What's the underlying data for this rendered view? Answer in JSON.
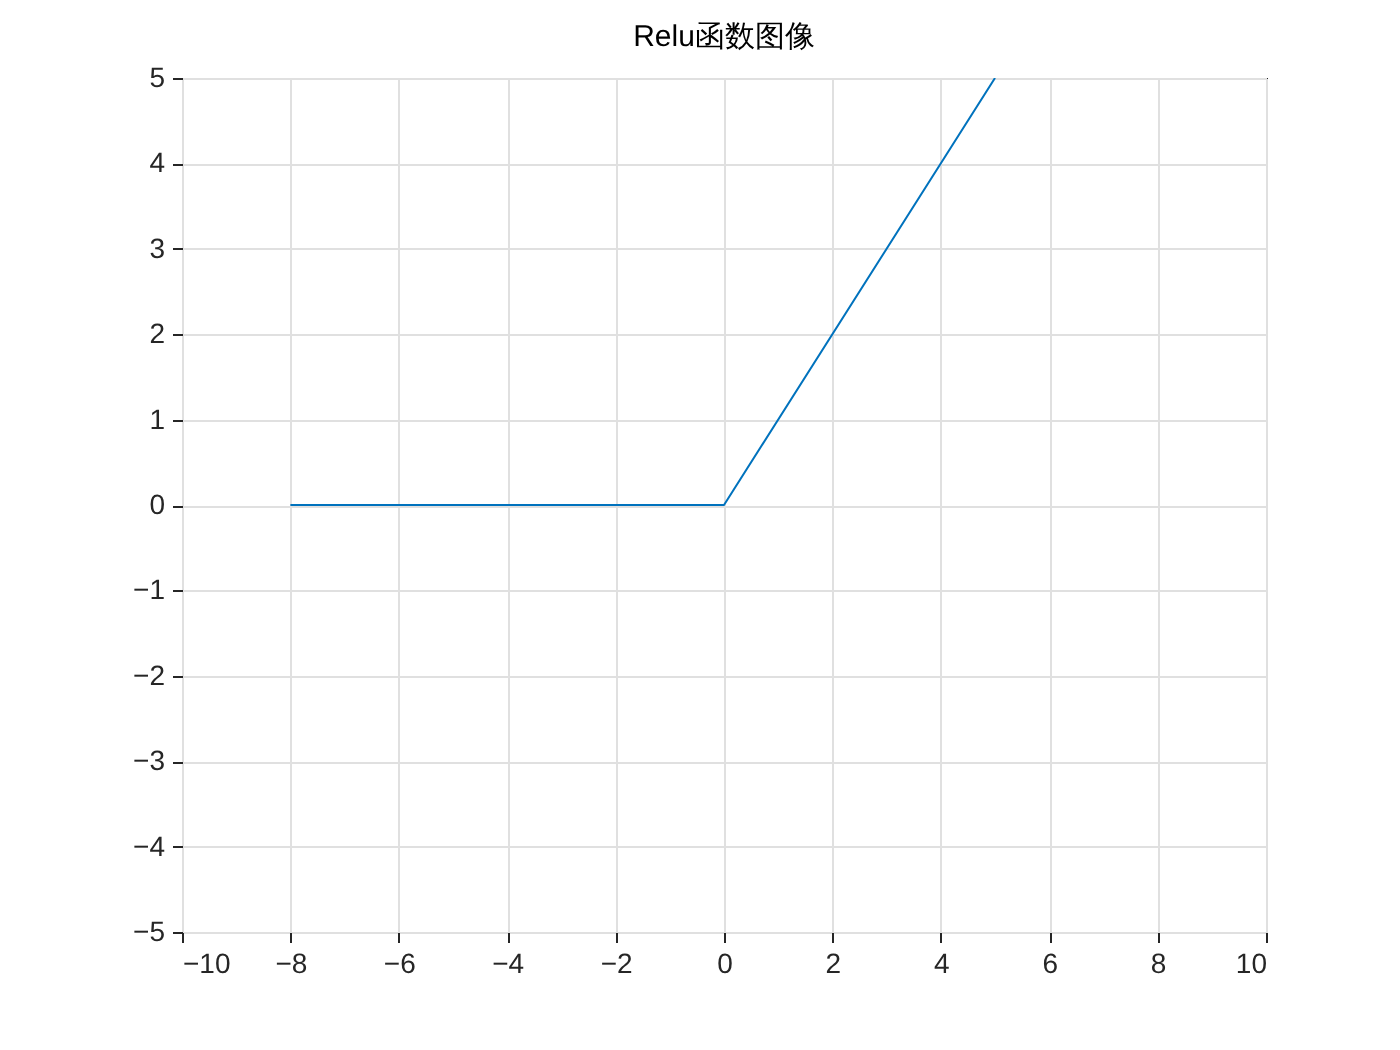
{
  "chart_data": {
    "type": "line",
    "title": "Relu函数图像",
    "x": [
      -8,
      0,
      5
    ],
    "series": [
      {
        "color": "#0072bd",
        "values": [
          0,
          0,
          5
        ]
      }
    ],
    "xlim": [
      -10,
      10
    ],
    "ylim": [
      -5,
      5
    ],
    "xticks": [
      -10,
      -8,
      -6,
      -4,
      -2,
      0,
      2,
      4,
      6,
      8,
      10
    ],
    "yticks": [
      -5,
      -4,
      -3,
      -2,
      -1,
      0,
      1,
      2,
      3,
      4,
      5
    ],
    "grid": true
  }
}
